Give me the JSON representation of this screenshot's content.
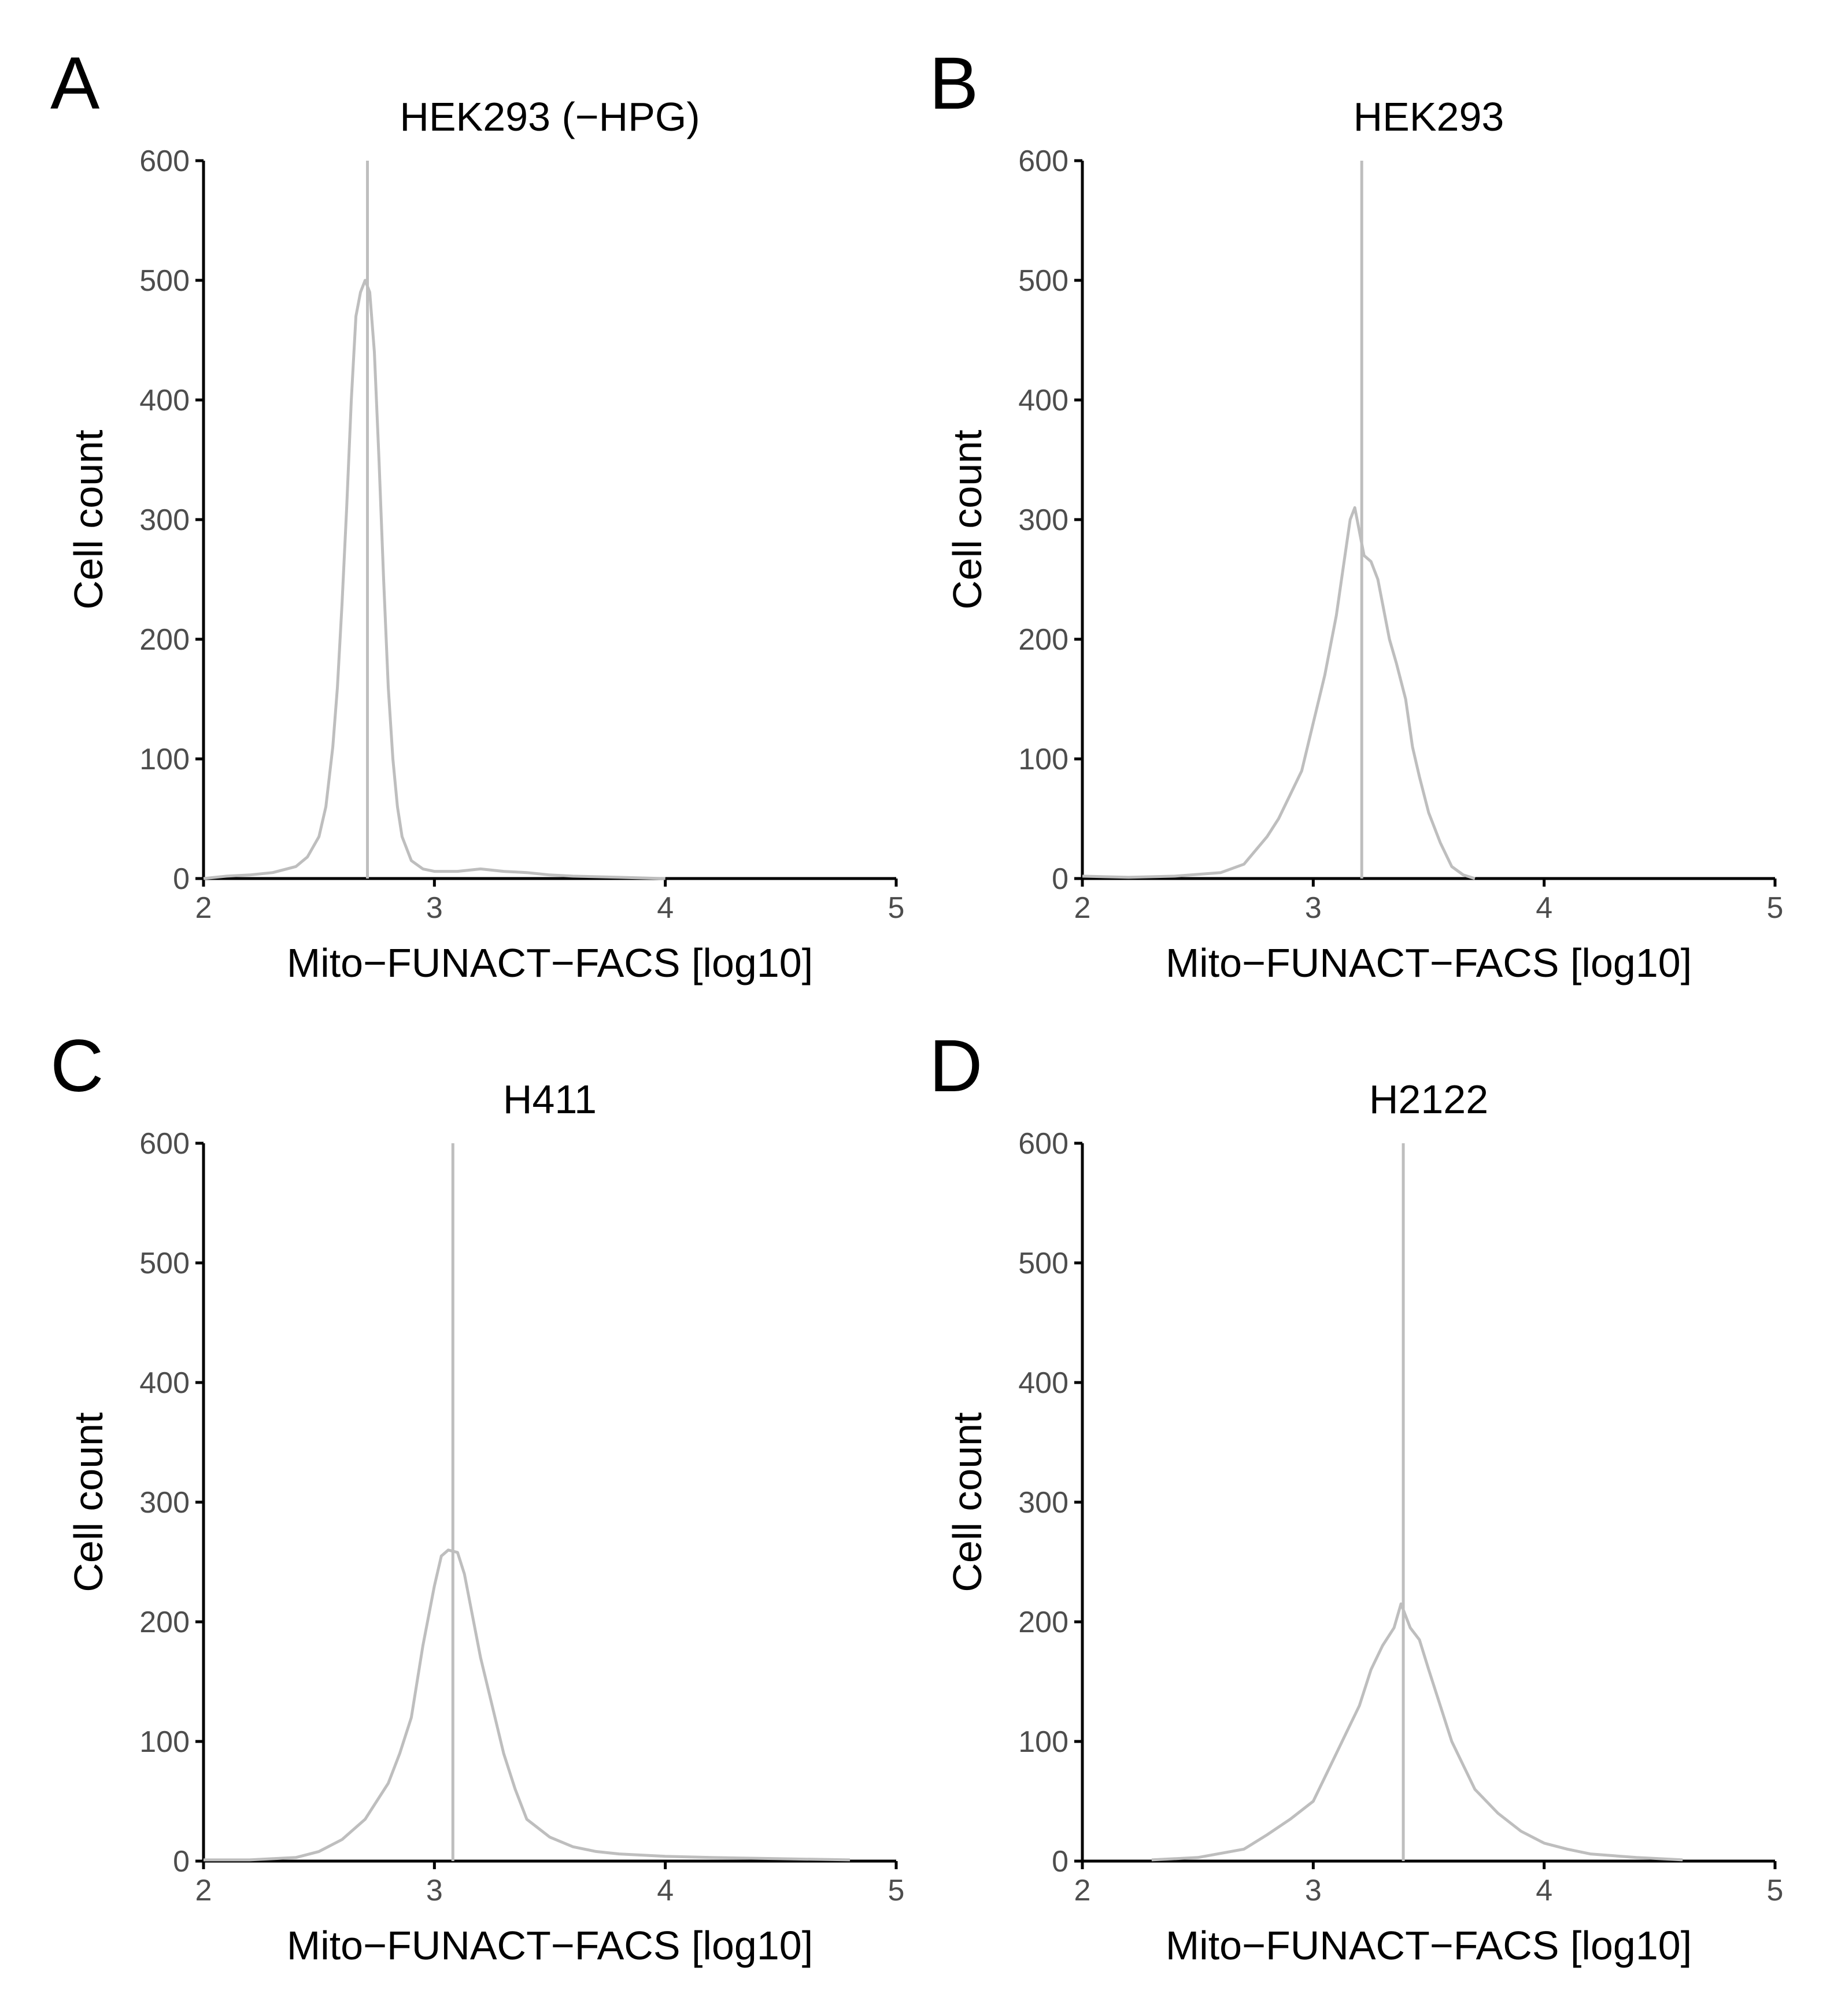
{
  "figure": {
    "line_color": "#bebebe"
  },
  "chart_data": [
    {
      "type": "line",
      "panel_label": "A",
      "title": "HEK293 (−HPG)",
      "xlabel": "Mito−FUNACT−FACS [log10]",
      "ylabel": "Cell count",
      "xlim": [
        2,
        5
      ],
      "ylim": [
        0,
        600
      ],
      "xticks": [
        2,
        3,
        4,
        5
      ],
      "xtick_labels": [
        "2",
        "3",
        "4",
        "5"
      ],
      "yticks": [
        0,
        100,
        200,
        300,
        400,
        500,
        600
      ],
      "ytick_labels": [
        "0",
        "100",
        "200",
        "300",
        "400",
        "500",
        "600"
      ],
      "grid": false,
      "vline_x": 2.71,
      "series": [
        {
          "x": [
            2.0,
            2.1,
            2.2,
            2.3,
            2.4,
            2.45,
            2.5,
            2.53,
            2.56,
            2.58,
            2.6,
            2.62,
            2.64,
            2.66,
            2.68,
            2.7,
            2.72,
            2.74,
            2.76,
            2.78,
            2.8,
            2.82,
            2.84,
            2.86,
            2.9,
            2.95,
            3.0,
            3.1,
            3.2,
            3.3,
            3.4,
            3.5,
            3.6,
            3.8,
            4.0
          ],
          "y": [
            0,
            2,
            3,
            5,
            10,
            18,
            35,
            60,
            110,
            160,
            230,
            310,
            400,
            470,
            490,
            500,
            490,
            440,
            350,
            250,
            160,
            100,
            60,
            35,
            15,
            8,
            6,
            6,
            8,
            6,
            5,
            3,
            2,
            1,
            0
          ]
        }
      ]
    },
    {
      "type": "line",
      "panel_label": "B",
      "title": "HEK293",
      "xlabel": "Mito−FUNACT−FACS [log10]",
      "ylabel": "Cell count",
      "xlim": [
        2,
        5
      ],
      "ylim": [
        0,
        600
      ],
      "xticks": [
        2,
        3,
        4,
        5
      ],
      "xtick_labels": [
        "2",
        "3",
        "4",
        "5"
      ],
      "yticks": [
        0,
        100,
        200,
        300,
        400,
        500,
        600
      ],
      "ytick_labels": [
        "0",
        "100",
        "200",
        "300",
        "400",
        "500",
        "600"
      ],
      "grid": false,
      "vline_x": 3.21,
      "series": [
        {
          "x": [
            2.0,
            2.2,
            2.4,
            2.6,
            2.7,
            2.8,
            2.85,
            2.9,
            2.95,
            3.0,
            3.05,
            3.1,
            3.13,
            3.16,
            3.18,
            3.2,
            3.22,
            3.25,
            3.28,
            3.3,
            3.33,
            3.36,
            3.4,
            3.43,
            3.46,
            3.5,
            3.55,
            3.6,
            3.65,
            3.7
          ],
          "y": [
            2,
            1,
            2,
            5,
            12,
            35,
            50,
            70,
            90,
            130,
            170,
            220,
            260,
            300,
            310,
            290,
            270,
            265,
            250,
            230,
            200,
            180,
            150,
            110,
            85,
            55,
            30,
            10,
            3,
            0
          ]
        }
      ]
    },
    {
      "type": "line",
      "panel_label": "C",
      "title": "H411",
      "xlabel": "Mito−FUNACT−FACS [log10]",
      "ylabel": "Cell count",
      "xlim": [
        2,
        5
      ],
      "ylim": [
        0,
        600
      ],
      "xticks": [
        2,
        3,
        4,
        5
      ],
      "xtick_labels": [
        "2",
        "3",
        "4",
        "5"
      ],
      "yticks": [
        0,
        100,
        200,
        300,
        400,
        500,
        600
      ],
      "ytick_labels": [
        "0",
        "100",
        "200",
        "300",
        "400",
        "500",
        "600"
      ],
      "grid": false,
      "vline_x": 3.08,
      "series": [
        {
          "x": [
            2.0,
            2.2,
            2.4,
            2.5,
            2.6,
            2.7,
            2.8,
            2.85,
            2.9,
            2.95,
            3.0,
            3.03,
            3.06,
            3.1,
            3.13,
            3.16,
            3.2,
            3.25,
            3.3,
            3.35,
            3.4,
            3.5,
            3.6,
            3.7,
            3.8,
            4.0,
            4.2,
            4.5,
            4.8
          ],
          "y": [
            1,
            1,
            3,
            8,
            18,
            35,
            65,
            90,
            120,
            180,
            230,
            255,
            260,
            258,
            240,
            210,
            170,
            130,
            90,
            60,
            35,
            20,
            12,
            8,
            6,
            4,
            3,
            2,
            1
          ]
        }
      ]
    },
    {
      "type": "line",
      "panel_label": "D",
      "title": "H2122",
      "xlabel": "Mito−FUNACT−FACS [log10]",
      "ylabel": "Cell count",
      "xlim": [
        2,
        5
      ],
      "ylim": [
        0,
        600
      ],
      "xticks": [
        2,
        3,
        4,
        5
      ],
      "xtick_labels": [
        "2",
        "3",
        "4",
        "5"
      ],
      "yticks": [
        0,
        100,
        200,
        300,
        400,
        500,
        600
      ],
      "ytick_labels": [
        "0",
        "100",
        "200",
        "300",
        "400",
        "500",
        "600"
      ],
      "grid": false,
      "vline_x": 3.39,
      "series": [
        {
          "x": [
            2.3,
            2.5,
            2.7,
            2.8,
            2.9,
            3.0,
            3.05,
            3.1,
            3.15,
            3.2,
            3.25,
            3.3,
            3.35,
            3.38,
            3.42,
            3.46,
            3.5,
            3.55,
            3.6,
            3.65,
            3.7,
            3.8,
            3.9,
            4.0,
            4.1,
            4.2,
            4.4,
            4.6
          ],
          "y": [
            1,
            3,
            10,
            22,
            35,
            50,
            70,
            90,
            110,
            130,
            160,
            180,
            195,
            215,
            195,
            185,
            160,
            130,
            100,
            80,
            60,
            40,
            25,
            15,
            10,
            6,
            3,
            1
          ]
        }
      ]
    }
  ]
}
